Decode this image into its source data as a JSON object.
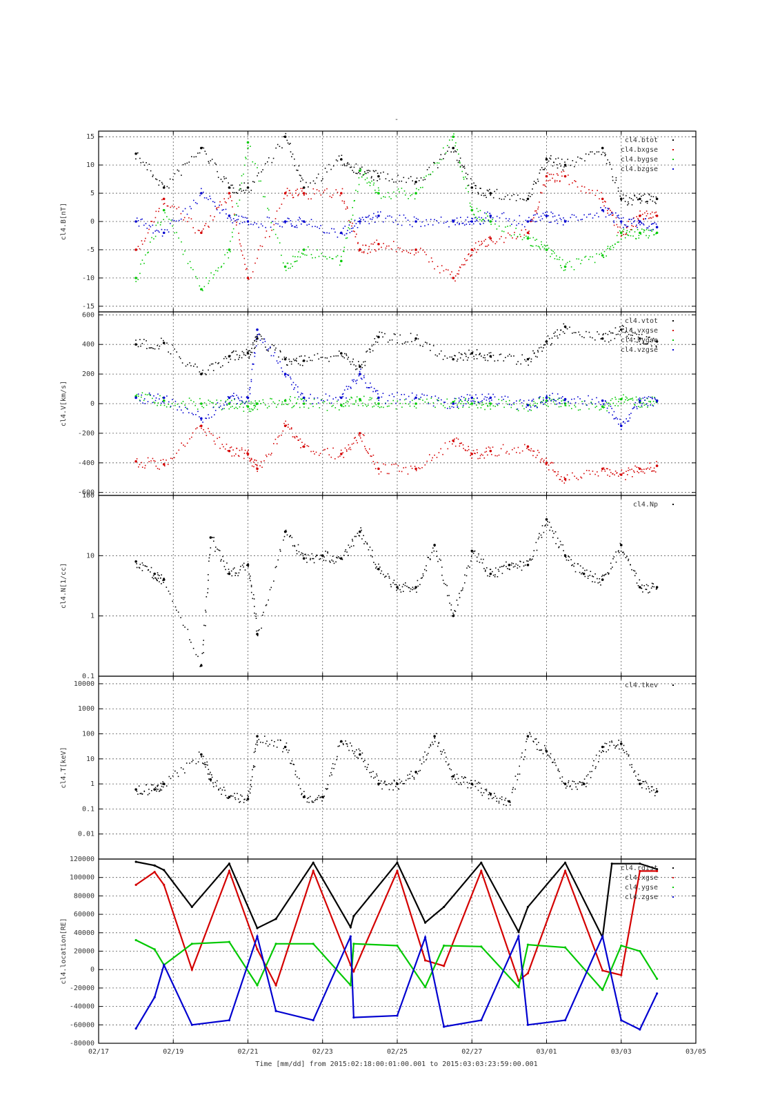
{
  "figure": {
    "top_mark": "-",
    "xlabel": "Time [mm/dd]  from 2015:02:18:00:01:00.001  to  2015:03:03:23:59:00.001"
  },
  "colors": {
    "black": "#000000",
    "red": "#d40000",
    "green": "#00c800",
    "blue": "#0000d0"
  },
  "chart_data": [
    {
      "type": "scatter",
      "panel": "magnetic field",
      "ylabel": "cl4.B[nT]",
      "ylim": [
        -16,
        16
      ],
      "yscale": "linear",
      "yticks": [
        15,
        10,
        5,
        0,
        -5,
        -10,
        -15
      ],
      "ytick_labels": [
        "15",
        "10",
        "5",
        "0",
        "-5",
        "-10",
        "-15"
      ],
      "legend_position": "top-right",
      "series": [
        {
          "name": "cl4.btot",
          "color": "#000000",
          "x": [
            "02/18",
            "02/18 18h",
            "02/19 18h",
            "02/20 12h",
            "02/21",
            "02/22",
            "02/22 12h",
            "02/23 12h",
            "02/24",
            "02/24 12h",
            "02/25 12h",
            "02/26 12h",
            "02/27",
            "02/27 12h",
            "02/28 12h",
            "03/01",
            "03/01 12h",
            "03/02 12h",
            "03/03",
            "03/03 12h",
            "03/03 23h"
          ],
          "values": [
            12,
            6,
            13,
            6,
            6,
            15,
            6,
            11,
            9,
            8,
            7,
            13,
            6,
            5,
            4,
            11,
            10,
            13,
            4,
            4,
            4
          ]
        },
        {
          "name": "cl4.bxgse",
          "color": "#d40000",
          "x": [
            "02/18",
            "02/18 18h",
            "02/19 18h",
            "02/20 12h",
            "02/21",
            "02/22",
            "02/22 12h",
            "02/23 12h",
            "02/24",
            "02/24 12h",
            "02/25 12h",
            "02/26 12h",
            "02/27",
            "02/27 12h",
            "02/28 12h",
            "03/01",
            "03/01 12h",
            "03/02 12h",
            "03/03",
            "03/03 12h",
            "03/03 23h"
          ],
          "values": [
            -5,
            4,
            -2,
            5,
            -10,
            5,
            5,
            5,
            -5,
            -4,
            -5,
            -10,
            -5,
            -3,
            -2,
            8,
            8,
            4,
            -2,
            1,
            1
          ]
        },
        {
          "name": "cl4.bygse",
          "color": "#00c800",
          "x": [
            "02/18",
            "02/18 18h",
            "02/19 18h",
            "02/20 12h",
            "02/21",
            "02/22",
            "02/22 12h",
            "02/23 12h",
            "02/24",
            "02/24 12h",
            "02/25 12h",
            "02/26 12h",
            "02/27",
            "02/27 12h",
            "02/28 12h",
            "03/01",
            "03/01 12h",
            "03/02 12h",
            "03/03",
            "03/03 12h",
            "03/03 23h"
          ],
          "values": [
            -10,
            2,
            -12,
            -5,
            14,
            -8,
            -5,
            -7,
            9,
            5,
            5,
            15,
            2,
            0,
            -3,
            -5,
            -8,
            -6,
            -2,
            -2,
            -2
          ]
        },
        {
          "name": "cl4.bzgse",
          "color": "#0000d0",
          "x": [
            "02/18",
            "02/18 18h",
            "02/19 18h",
            "02/20 12h",
            "02/21",
            "02/22",
            "02/22 12h",
            "02/23 12h",
            "02/24",
            "02/24 12h",
            "02/25 12h",
            "02/26 12h",
            "02/27",
            "02/27 12h",
            "02/28 12h",
            "03/01",
            "03/01 12h",
            "03/02 12h",
            "03/03",
            "03/03 12h",
            "03/03 23h"
          ],
          "values": [
            0,
            -2,
            5,
            1,
            0,
            0,
            0,
            -2,
            0,
            1,
            0,
            0,
            0,
            1,
            0,
            1,
            0,
            2,
            0,
            0,
            -1
          ]
        }
      ]
    },
    {
      "type": "scatter",
      "panel": "velocity",
      "ylabel": "cl4.V[km/s]",
      "ylim": [
        -620,
        620
      ],
      "yscale": "linear",
      "yticks": [
        600,
        400,
        200,
        0,
        -200,
        -400,
        -600
      ],
      "ytick_labels": [
        "600",
        "400",
        "200",
        "0",
        "-200",
        "-400",
        "-600"
      ],
      "legend_position": "top-right",
      "series": [
        {
          "name": "cl4.vtot",
          "color": "#000000",
          "x": [
            "02/18",
            "02/18 18h",
            "02/19 18h",
            "02/20 12h",
            "02/21",
            "02/21 6h",
            "02/22",
            "02/22 12h",
            "02/23 12h",
            "02/24",
            "02/24 12h",
            "02/25 12h",
            "02/26 12h",
            "02/27",
            "02/27 12h",
            "02/28 12h",
            "03/01",
            "03/01 12h",
            "03/02 12h",
            "03/03",
            "03/03 12h",
            "03/03 23h"
          ],
          "values": [
            400,
            410,
            200,
            320,
            340,
            440,
            300,
            290,
            340,
            250,
            450,
            440,
            300,
            340,
            320,
            300,
            420,
            520,
            440,
            500,
            440,
            420
          ]
        },
        {
          "name": "cl4.vxgse",
          "color": "#d40000",
          "x": [
            "02/18",
            "02/18 18h",
            "02/19 18h",
            "02/20 12h",
            "02/21",
            "02/21 6h",
            "02/22",
            "02/22 12h",
            "02/23 12h",
            "02/24",
            "02/24 12h",
            "02/25 12h",
            "02/26 12h",
            "02/27",
            "02/27 12h",
            "02/28 12h",
            "03/01",
            "03/01 12h",
            "03/02 12h",
            "03/03",
            "03/03 12h",
            "03/03 23h"
          ],
          "values": [
            -390,
            -410,
            -150,
            -320,
            -340,
            -440,
            -150,
            -290,
            -340,
            -200,
            -440,
            -440,
            -250,
            -340,
            -320,
            -290,
            -400,
            -510,
            -440,
            -480,
            -440,
            -420
          ]
        },
        {
          "name": "cl4.vygse",
          "color": "#00c800",
          "x": [
            "02/18",
            "02/18 18h",
            "02/19 18h",
            "02/20 12h",
            "02/21",
            "02/21 6h",
            "02/22",
            "02/22 12h",
            "02/23 12h",
            "02/24",
            "02/24 12h",
            "02/25 12h",
            "02/26 12h",
            "02/27",
            "02/27 12h",
            "02/28 12h",
            "03/01",
            "03/01 12h",
            "03/02 12h",
            "03/03",
            "03/03 12h",
            "03/03 23h"
          ],
          "values": [
            50,
            20,
            0,
            0,
            -20,
            0,
            20,
            0,
            -10,
            30,
            0,
            0,
            10,
            0,
            0,
            -10,
            20,
            0,
            -20,
            30,
            10,
            20
          ]
        },
        {
          "name": "cl4.vzgse",
          "color": "#0000d0",
          "x": [
            "02/18",
            "02/18 18h",
            "02/19 18h",
            "02/20 12h",
            "02/21",
            "02/21 6h",
            "02/22",
            "02/22 12h",
            "02/23 12h",
            "02/24",
            "02/24 12h",
            "02/25 12h",
            "02/26 12h",
            "02/27",
            "02/27 12h",
            "02/28 12h",
            "03/01",
            "03/01 12h",
            "03/02 12h",
            "03/03",
            "03/03 12h",
            "03/03 23h"
          ],
          "values": [
            40,
            40,
            -100,
            40,
            40,
            500,
            200,
            40,
            40,
            200,
            40,
            40,
            0,
            40,
            40,
            -10,
            40,
            30,
            20,
            -150,
            20,
            20
          ]
        }
      ]
    },
    {
      "type": "scatter",
      "panel": "density",
      "ylabel": "cl4.N[1/cc]",
      "ylim": [
        0.1,
        100
      ],
      "yscale": "log",
      "yticks": [
        100,
        10,
        1,
        0.1
      ],
      "ytick_labels": [
        "100",
        "10",
        "1",
        "0.1"
      ],
      "legend_position": "top-right",
      "series": [
        {
          "name": "cl4.Np",
          "color": "#000000",
          "x": [
            "02/18",
            "02/18 12h",
            "02/18 18h",
            "02/19 18h",
            "02/20",
            "02/20 12h",
            "02/21",
            "02/21 6h",
            "02/22",
            "02/22 12h",
            "02/23",
            "02/23 12h",
            "02/24",
            "02/24 12h",
            "02/25",
            "02/25 12h",
            "02/26",
            "02/26 12h",
            "02/27",
            "02/27 12h",
            "02/28",
            "02/28 12h",
            "03/01",
            "03/01 12h",
            "03/02",
            "03/02 12h",
            "03/03",
            "03/03 12h",
            "03/03 23h"
          ],
          "values": [
            8,
            5,
            4,
            0.15,
            20,
            5,
            7,
            0.5,
            25,
            9,
            10,
            9,
            25,
            6,
            3,
            3,
            15,
            1,
            12,
            5,
            7,
            7,
            40,
            10,
            5,
            4,
            15,
            3,
            3
          ]
        }
      ]
    },
    {
      "type": "scatter",
      "panel": "temperature",
      "ylabel": "cl4.T[keV]",
      "ylim": [
        0.001,
        20000
      ],
      "yscale": "log",
      "yticks": [
        10000,
        1000,
        100,
        10,
        1,
        0.1,
        0.01
      ],
      "ytick_labels": [
        "10000",
        "1000",
        "100",
        "10",
        "1",
        "0.1",
        "0.01"
      ],
      "legend_position": "top-right",
      "series": [
        {
          "name": "cl4.tkev",
          "color": "#000000",
          "x": [
            "02/18",
            "02/18 12h",
            "02/18 18h",
            "02/19 18h",
            "02/20",
            "02/20 12h",
            "02/21",
            "02/21 6h",
            "02/22",
            "02/22 12h",
            "02/23",
            "02/23 12h",
            "02/24",
            "02/24 12h",
            "02/25",
            "02/25 12h",
            "02/26",
            "02/26 12h",
            "02/27",
            "02/27 12h",
            "02/28",
            "02/28 12h",
            "03/01",
            "03/01 12h",
            "03/02",
            "03/02 12h",
            "03/03",
            "03/03 12h",
            "03/03 23h"
          ],
          "values": [
            0.6,
            0.6,
            1,
            15,
            1.5,
            0.3,
            0.25,
            80,
            30,
            0.3,
            0.3,
            50,
            15,
            1,
            1,
            3,
            80,
            2,
            1,
            0.4,
            0.2,
            80,
            20,
            1,
            1,
            30,
            40,
            1,
            0.5
          ]
        }
      ]
    },
    {
      "type": "line",
      "panel": "location",
      "ylabel": "cl4.location[RE]",
      "ylim": [
        -80000,
        120000
      ],
      "yscale": "linear",
      "yticks": [
        120000,
        100000,
        80000,
        60000,
        40000,
        20000,
        0,
        -20000,
        -40000,
        -60000,
        -80000
      ],
      "ytick_labels": [
        "120000",
        "100000",
        "80000",
        "60000",
        "40000",
        "20000",
        "0",
        "-20000",
        "-40000",
        "-60000",
        "-80000"
      ],
      "legend_position": "top-right",
      "series": [
        {
          "name": "cl4.rdist",
          "color": "#000000",
          "x": [
            "02/18",
            "02/18 12h",
            "02/18 18h",
            "02/19 12h",
            "02/20 12h",
            "02/21 6h",
            "02/21 18h",
            "02/22 18h",
            "02/23 18h",
            "02/23 20h",
            "02/25",
            "02/25 18h",
            "02/26 6h",
            "02/27 6h",
            "02/28 6h",
            "02/28 12h",
            "03/01 12h",
            "03/02 12h",
            "03/02 18h",
            "03/03 12h",
            "03/03 23h"
          ],
          "values": [
            117000,
            113000,
            108000,
            68000,
            115000,
            45000,
            55000,
            116000,
            46000,
            58000,
            116000,
            51000,
            68000,
            116000,
            41000,
            68000,
            116000,
            35000,
            115000,
            115000,
            109000
          ]
        },
        {
          "name": "cl4.xgse",
          "color": "#d40000",
          "x": [
            "02/18",
            "02/18 12h",
            "02/18 18h",
            "02/19 12h",
            "02/20 12h",
            "02/21 6h",
            "02/21 18h",
            "02/22 18h",
            "02/23 18h",
            "02/23 20h",
            "02/25",
            "02/25 18h",
            "02/26 6h",
            "02/27 6h",
            "02/28 6h",
            "02/28 12h",
            "03/01 12h",
            "03/02 12h",
            "03/03",
            "03/03 12h",
            "03/03 23h"
          ],
          "values": [
            92000,
            106000,
            92000,
            0,
            107000,
            22000,
            -17000,
            107000,
            5000,
            -2000,
            107000,
            10000,
            4000,
            107000,
            -12000,
            -4000,
            107000,
            -1000,
            -6000,
            107000,
            107000
          ]
        },
        {
          "name": "cl4.ygse",
          "color": "#00c800",
          "x": [
            "02/18",
            "02/18 12h",
            "02/18 18h",
            "02/19 12h",
            "02/20 12h",
            "02/21 6h",
            "02/21 18h",
            "02/22 18h",
            "02/23 18h",
            "02/23 20h",
            "02/25",
            "02/25 18h",
            "02/26 6h",
            "02/27 6h",
            "02/28 6h",
            "02/28 12h",
            "03/01 12h",
            "03/02 12h",
            "03/03",
            "03/03 12h",
            "03/03 23h"
          ],
          "values": [
            32000,
            22000,
            5000,
            28000,
            30000,
            -17000,
            28000,
            28000,
            -17000,
            28000,
            26000,
            -19000,
            26000,
            25000,
            -19000,
            27000,
            24000,
            -22000,
            26000,
            20000,
            -10000
          ]
        },
        {
          "name": "cl4.zgse",
          "color": "#0000d0",
          "x": [
            "02/18",
            "02/18 12h",
            "02/18 18h",
            "02/19 12h",
            "02/20 12h",
            "02/21 6h",
            "02/21 18h",
            "02/22 18h",
            "02/23 18h",
            "02/23 20h",
            "02/25",
            "02/25 18h",
            "02/26 6h",
            "02/27 6h",
            "02/28 6h",
            "02/28 12h",
            "03/01 12h",
            "03/02 12h",
            "03/03",
            "03/03 12h",
            "03/03 23h"
          ],
          "values": [
            -64000,
            -30000,
            5000,
            -60000,
            -55000,
            36000,
            -45000,
            -55000,
            36000,
            -52000,
            -50000,
            35000,
            -62000,
            -55000,
            36000,
            -60000,
            -55000,
            36000,
            -55000,
            -65000,
            -26000
          ]
        }
      ]
    }
  ],
  "x_axis": {
    "tick_labels": [
      "02/17",
      "02/19",
      "02/21",
      "02/23",
      "02/25",
      "02/27",
      "03/01",
      "03/03",
      "03/05"
    ],
    "xlim": [
      "02/17",
      "03/05"
    ]
  }
}
